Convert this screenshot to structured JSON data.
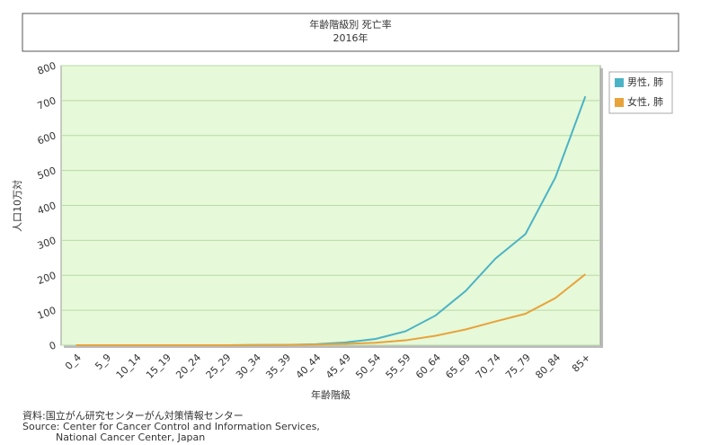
{
  "chart_data": {
    "type": "line",
    "title": "年齢階級別  死亡率",
    "subtitle": "2016年",
    "x_label": "年齢階級",
    "y_label": "人口10万対",
    "categories": [
      "0_4",
      "5_9",
      "10_14",
      "15_19",
      "20_24",
      "25_29",
      "30_34",
      "35_39",
      "40_44",
      "45_49",
      "50_54",
      "55_59",
      "60_64",
      "65_69",
      "70_74",
      "75_79",
      "80_84",
      "85+"
    ],
    "series": [
      {
        "name": "男性, 肺",
        "color": "#4bb3c6",
        "values": [
          0,
          0,
          0,
          0,
          0,
          0,
          0.5,
          1,
          3,
          8,
          18,
          40,
          85,
          155,
          248,
          318,
          480,
          712
        ]
      },
      {
        "name": "女性, 肺",
        "color": "#e8a33a",
        "values": [
          0,
          0,
          0,
          0,
          0,
          0,
          0.5,
          1,
          2,
          4,
          7,
          14,
          27,
          45,
          68,
          90,
          135,
          203
        ]
      }
    ],
    "ylim": [
      0,
      800
    ],
    "yticks": [
      0,
      100,
      200,
      300,
      400,
      500,
      600,
      700,
      800
    ],
    "grid": true,
    "legend": "right",
    "source": [
      "資料:国立がん研究センターがん対策情報センター",
      "Source: Center for Cancer Control and Information Services,",
      "National Cancer Center, Japan"
    ]
  }
}
